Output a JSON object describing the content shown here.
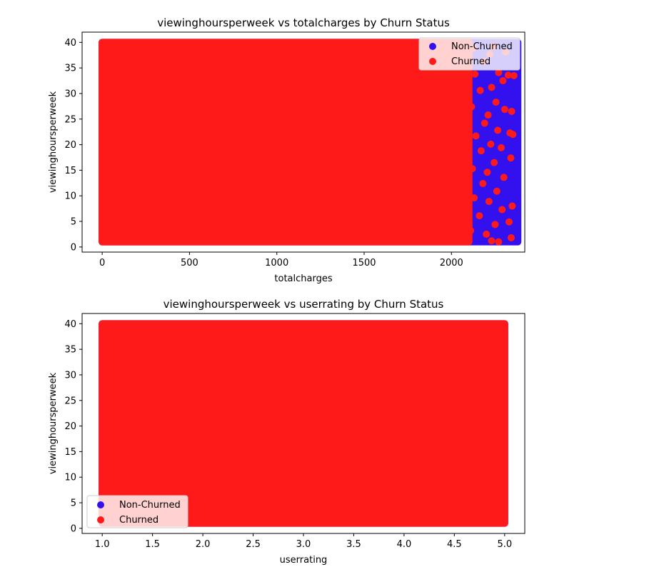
{
  "colors": {
    "non_churned": "#3311ee",
    "churned": "#ff1a1a",
    "axis": "#000000"
  },
  "chart_data": [
    {
      "type": "scatter",
      "title": "viewinghoursperweek vs totalcharges by Churn Status",
      "xlabel": "totalcharges",
      "ylabel": "viewinghoursperweek",
      "xlim": [
        -115,
        2420
      ],
      "ylim": [
        -1.0,
        42.0
      ],
      "xticks": [
        0,
        500,
        1000,
        1500,
        2000
      ],
      "xtick_labels": [
        "0",
        "500",
        "1000",
        "1500",
        "2000"
      ],
      "yticks": [
        0,
        5,
        10,
        15,
        20,
        25,
        30,
        35,
        40
      ],
      "ytick_labels": [
        "0",
        "5",
        "10",
        "15",
        "20",
        "25",
        "30",
        "35",
        "40"
      ],
      "grid": false,
      "legend": {
        "placement": "upper right",
        "entries": [
          "Non-Churned",
          "Churned"
        ]
      },
      "series": [
        {
          "name": "Non-Churned",
          "color": "#3311ee",
          "dense_region": {
            "x": [
              0,
              2380
            ],
            "y": [
              1,
              40
            ]
          },
          "points": [
            [
              2350,
              1.2
            ],
            [
              2360,
              3.5
            ],
            [
              2355,
              6.5
            ],
            [
              2365,
              9.2
            ],
            [
              2350,
              12.8
            ],
            [
              2360,
              15.5
            ],
            [
              2345,
              18.6
            ],
            [
              2370,
              21.3
            ],
            [
              2355,
              24.9
            ],
            [
              2362,
              27.8
            ],
            [
              2348,
              31.4
            ],
            [
              2366,
              34.6
            ],
            [
              2352,
              37.5
            ],
            [
              2360,
              39.5
            ],
            [
              2330,
              2.1
            ],
            [
              2320,
              8.4
            ],
            [
              2310,
              14.1
            ],
            [
              2325,
              19.9
            ],
            [
              2318,
              26.2
            ],
            [
              2305,
              33.1
            ],
            [
              2315,
              38.2
            ],
            [
              2290,
              5.3
            ],
            [
              2280,
              11.7
            ],
            [
              2295,
              17.2
            ],
            [
              2285,
              23.6
            ],
            [
              2292,
              29.9
            ],
            [
              2278,
              36.4
            ]
          ]
        },
        {
          "name": "Churned",
          "color": "#ff1a1a",
          "dense_region": {
            "x": [
              0,
              2100
            ],
            "y": [
              1,
              40
            ]
          },
          "points": [
            [
              2110,
              3.2
            ],
            [
              2130,
              9.6
            ],
            [
              2120,
              15.3
            ],
            [
              2140,
              21.7
            ],
            [
              2115,
              27.4
            ],
            [
              2135,
              33.8
            ],
            [
              2125,
              38.9
            ],
            [
              2160,
              6.1
            ],
            [
              2180,
              12.4
            ],
            [
              2170,
              18.8
            ],
            [
              2190,
              24.2
            ],
            [
              2165,
              30.6
            ],
            [
              2185,
              36.3
            ],
            [
              2200,
              2.5
            ],
            [
              2215,
              8.9
            ],
            [
              2205,
              14.6
            ],
            [
              2225,
              20.1
            ],
            [
              2210,
              25.8
            ],
            [
              2230,
              31.2
            ],
            [
              2220,
              37.7
            ],
            [
              2250,
              4.4
            ],
            [
              2260,
              10.9
            ],
            [
              2245,
              16.5
            ],
            [
              2265,
              22.8
            ],
            [
              2255,
              28.3
            ],
            [
              2270,
              34.1
            ],
            [
              2240,
              39.2
            ],
            [
              2290,
              7.3
            ],
            [
              2300,
              13.6
            ],
            [
              2285,
              19.4
            ],
            [
              2305,
              26.9
            ],
            [
              2295,
              32.5
            ],
            [
              2310,
              38.1
            ],
            [
              2330,
              4.9
            ],
            [
              2340,
              17.4
            ],
            [
              2335,
              22.3
            ],
            [
              2345,
              26.5
            ],
            [
              2325,
              33.6
            ],
            [
              2352,
              22.0
            ],
            [
              2348,
              8.0
            ],
            [
              2358,
              33.5
            ],
            [
              2342,
              1.8
            ],
            [
              2270,
              1.0
            ],
            [
              2230,
              1.2
            ]
          ]
        }
      ]
    },
    {
      "type": "scatter",
      "title": "viewinghoursperweek vs userrating by Churn Status",
      "xlabel": "userrating",
      "ylabel": "viewinghoursperweek",
      "xlim": [
        0.8,
        5.2
      ],
      "ylim": [
        -1.0,
        42.0
      ],
      "xticks": [
        1.0,
        1.5,
        2.0,
        2.5,
        3.0,
        3.5,
        4.0,
        4.5,
        5.0
      ],
      "xtick_labels": [
        "1.0",
        "1.5",
        "2.0",
        "2.5",
        "3.0",
        "3.5",
        "4.0",
        "4.5",
        "5.0"
      ],
      "yticks": [
        0,
        5,
        10,
        15,
        20,
        25,
        30,
        35,
        40
      ],
      "ytick_labels": [
        "0",
        "5",
        "10",
        "15",
        "20",
        "25",
        "30",
        "35",
        "40"
      ],
      "grid": false,
      "legend": {
        "placement": "lower left",
        "entries": [
          "Non-Churned",
          "Churned"
        ]
      },
      "series": [
        {
          "name": "Non-Churned",
          "color": "#3311ee",
          "dense_region": {
            "x": [
              1.0,
              5.0
            ],
            "y": [
              1,
              40
            ]
          },
          "points": []
        },
        {
          "name": "Churned",
          "color": "#ff1a1a",
          "dense_region": {
            "x": [
              1.0,
              5.0
            ],
            "y": [
              1,
              40
            ]
          },
          "points": []
        }
      ]
    }
  ]
}
